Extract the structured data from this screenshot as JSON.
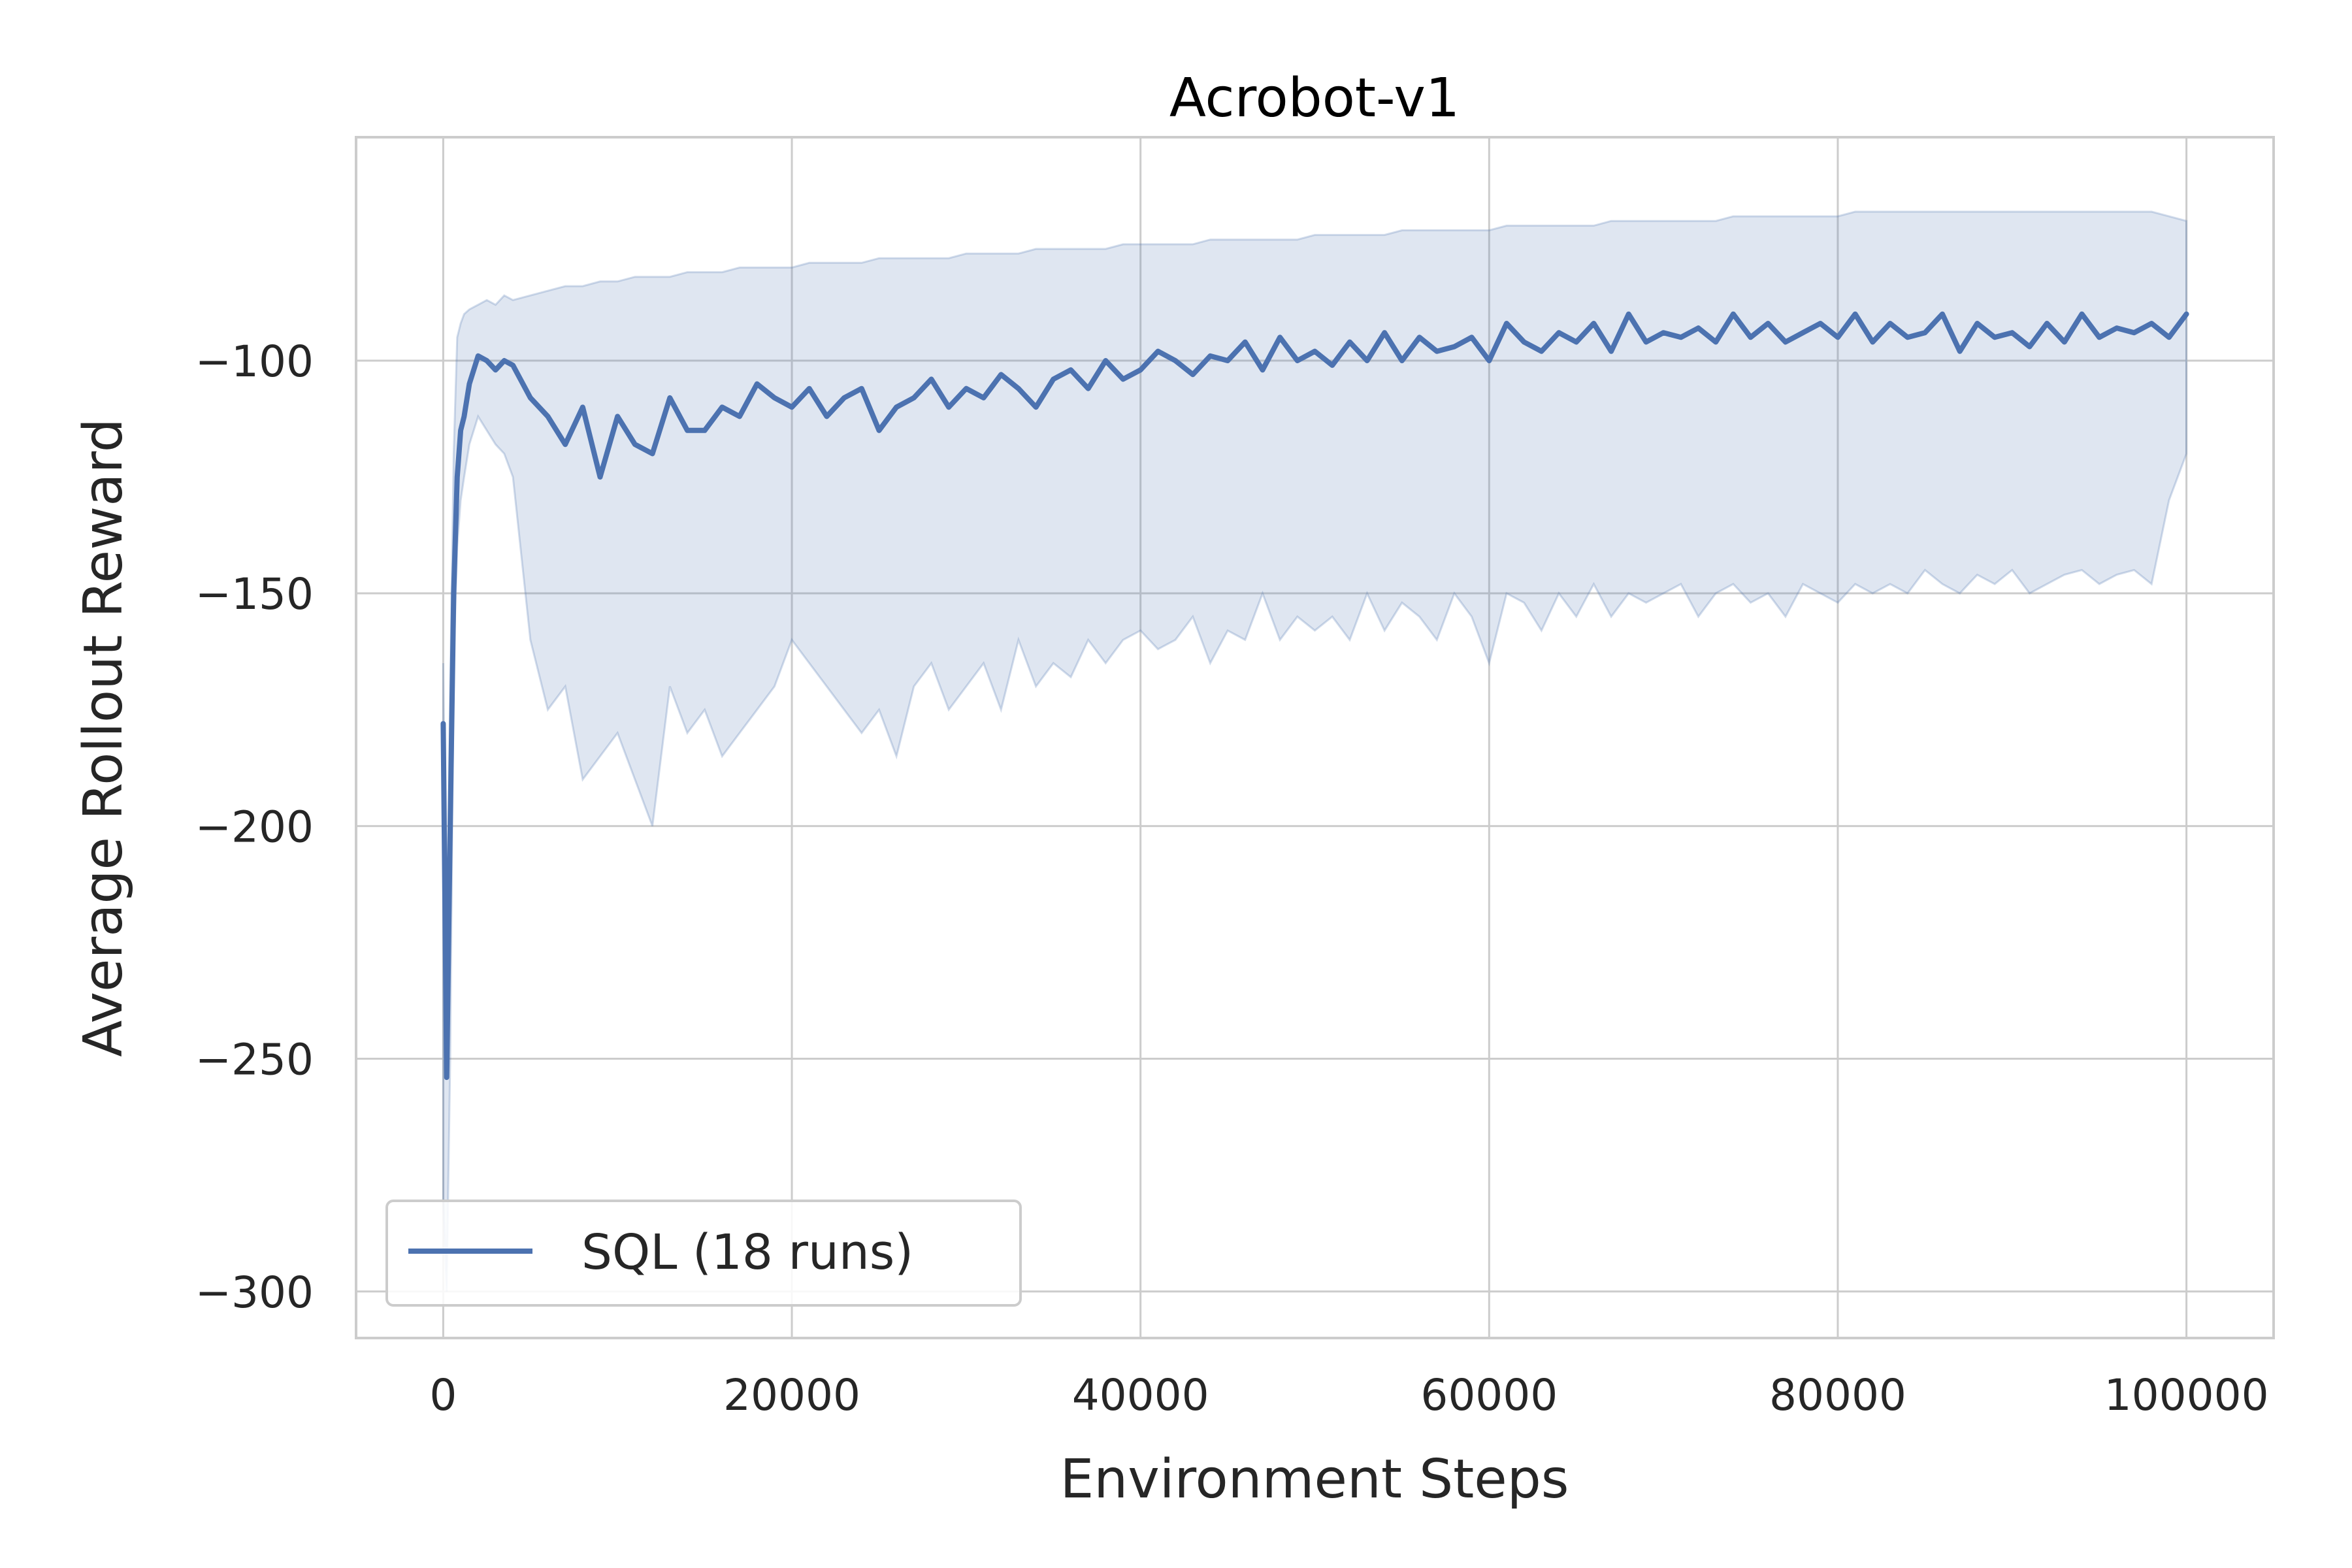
{
  "chart_data": {
    "type": "line",
    "title": "Acrobot-v1",
    "xlabel": "Environment Steps",
    "ylabel": "Average Rollout Reward",
    "xlim": [
      -5000,
      105000
    ],
    "ylim": [
      -310,
      -52
    ],
    "x_ticks": [
      0,
      20000,
      40000,
      60000,
      80000,
      100000
    ],
    "x_tick_labels": [
      "0",
      "20000",
      "40000",
      "60000",
      "80000",
      "100000"
    ],
    "y_ticks": [
      -300,
      -250,
      -200,
      -150,
      -100
    ],
    "y_tick_labels": [
      "−300",
      "−250",
      "−200",
      "−150",
      "−100"
    ],
    "grid": true,
    "legend_placement": "lower-left",
    "colors": {
      "series": "#4c72b0",
      "band": "#4c72b0",
      "grid": "#cccccc",
      "spine": "#cccccc"
    },
    "series": [
      {
        "name": "SQL (18 runs)",
        "x": [
          0,
          200,
          400,
          600,
          800,
          1000,
          1200,
          1500,
          2000,
          2500,
          3000,
          3500,
          4000,
          5000,
          6000,
          7000,
          8000,
          9000,
          10000,
          11000,
          12000,
          13000,
          14000,
          15000,
          16000,
          17000,
          18000,
          19000,
          20000,
          21000,
          22000,
          23000,
          24000,
          25000,
          26000,
          27000,
          28000,
          29000,
          30000,
          31000,
          32000,
          33000,
          34000,
          35000,
          36000,
          37000,
          38000,
          39000,
          40000,
          41000,
          42000,
          43000,
          44000,
          45000,
          46000,
          47000,
          48000,
          49000,
          50000,
          51000,
          52000,
          53000,
          54000,
          55000,
          56000,
          57000,
          58000,
          59000,
          60000,
          61000,
          62000,
          63000,
          64000,
          65000,
          66000,
          67000,
          68000,
          69000,
          70000,
          71000,
          72000,
          73000,
          74000,
          75000,
          76000,
          77000,
          78000,
          79000,
          80000,
          81000,
          82000,
          83000,
          84000,
          85000,
          86000,
          87000,
          88000,
          89000,
          90000,
          91000,
          92000,
          93000,
          94000,
          95000,
          96000,
          97000,
          98000,
          99000,
          100000
        ],
        "y": [
          -178,
          -254,
          -200,
          -150,
          -125,
          -115,
          -112,
          -105,
          -99,
          -100,
          -102,
          -100,
          -101,
          -108,
          -112,
          -118,
          -110,
          -125,
          -112,
          -118,
          -120,
          -108,
          -115,
          -115,
          -110,
          -112,
          -105,
          -108,
          -110,
          -106,
          -112,
          -108,
          -106,
          -115,
          -110,
          -108,
          -104,
          -110,
          -106,
          -108,
          -103,
          -106,
          -110,
          -104,
          -102,
          -106,
          -100,
          -104,
          -102,
          -98,
          -100,
          -103,
          -99,
          -100,
          -96,
          -102,
          -95,
          -100,
          -98,
          -101,
          -96,
          -100,
          -94,
          -100,
          -95,
          -98,
          -97,
          -95,
          -100,
          -92,
          -96,
          -98,
          -94,
          -96,
          -92,
          -98,
          -90,
          -96,
          -94,
          -95,
          -93,
          -96,
          -90,
          -95,
          -92,
          -96,
          -94,
          -92,
          -95,
          -90,
          -96,
          -92,
          -95,
          -94,
          -90,
          -98,
          -92,
          -95,
          -94,
          -97,
          -92,
          -96,
          -90,
          -95,
          -93,
          -94,
          -92,
          -95,
          -90
        ]
      }
    ],
    "band_upper": [
      -165,
      -230,
      -170,
      -120,
      -95,
      -92,
      -90,
      -89,
      -88,
      -87,
      -88,
      -86,
      -87,
      -86,
      -85,
      -84,
      -84,
      -83,
      -83,
      -82,
      -82,
      -82,
      -81,
      -81,
      -81,
      -80,
      -80,
      -80,
      -80,
      -79,
      -79,
      -79,
      -79,
      -78,
      -78,
      -78,
      -78,
      -78,
      -77,
      -77,
      -77,
      -77,
      -76,
      -76,
      -76,
      -76,
      -76,
      -75,
      -75,
      -75,
      -75,
      -75,
      -74,
      -74,
      -74,
      -74,
      -74,
      -74,
      -73,
      -73,
      -73,
      -73,
      -73,
      -72,
      -72,
      -72,
      -72,
      -72,
      -72,
      -71,
      -71,
      -71,
      -71,
      -71,
      -71,
      -70,
      -70,
      -70,
      -70,
      -70,
      -70,
      -70,
      -69,
      -69,
      -69,
      -69,
      -69,
      -69,
      -69,
      -68,
      -68,
      -68,
      -68,
      -68,
      -68,
      -68,
      -68,
      -68,
      -68,
      -68,
      -68,
      -68,
      -68,
      -68,
      -68,
      -68,
      -68,
      -69,
      -70
    ],
    "band_lower": [
      -280,
      -300,
      -250,
      -165,
      -140,
      -130,
      -125,
      -118,
      -112,
      -115,
      -118,
      -120,
      -125,
      -160,
      -175,
      -170,
      -190,
      -185,
      -180,
      -190,
      -200,
      -170,
      -180,
      -175,
      -185,
      -180,
      -175,
      -170,
      -160,
      -165,
      -170,
      -175,
      -180,
      -175,
      -185,
      -170,
      -165,
      -175,
      -170,
      -165,
      -175,
      -160,
      -170,
      -165,
      -168,
      -160,
      -165,
      -160,
      -158,
      -162,
      -160,
      -155,
      -165,
      -158,
      -160,
      -150,
      -160,
      -155,
      -158,
      -155,
      -160,
      -150,
      -158,
      -152,
      -155,
      -160,
      -150,
      -155,
      -165,
      -150,
      -152,
      -158,
      -150,
      -155,
      -148,
      -155,
      -150,
      -152,
      -150,
      -148,
      -155,
      -150,
      -148,
      -152,
      -150,
      -155,
      -148,
      -150,
      -152,
      -148,
      -150,
      -148,
      -150,
      -145,
      -148,
      -150,
      -146,
      -148,
      -145,
      -150,
      -148,
      -146,
      -145,
      -148,
      -146,
      -145,
      -148,
      -130,
      -120
    ]
  }
}
